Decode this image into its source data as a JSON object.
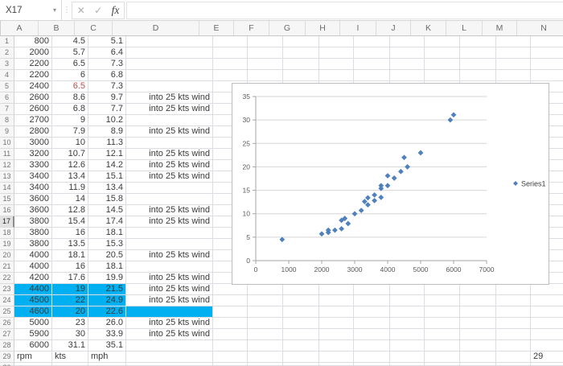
{
  "app": {
    "name_box": "X17",
    "formula_bar_value": "",
    "icons": {
      "dropdown": "▾",
      "grip": "⋮",
      "cancel": "✕",
      "enter": "✓",
      "function": "fx"
    }
  },
  "grid": {
    "column_headers": [
      "A",
      "B",
      "C",
      "D",
      "E",
      "F",
      "G",
      "H",
      "I",
      "J",
      "K",
      "L",
      "M",
      "N"
    ],
    "active_row": 17,
    "partial_bottom_row": "30",
    "colors": {
      "highlight": "#00B0F0",
      "red_text": "#C0504D"
    },
    "rows": [
      {
        "n": "1",
        "a": "800",
        "b": "4.5",
        "c": "5.1",
        "d": ""
      },
      {
        "n": "2",
        "a": "2000",
        "b": "5.7",
        "c": "6.4",
        "d": ""
      },
      {
        "n": "3",
        "a": "2200",
        "b": "6.5",
        "c": "7.3",
        "d": ""
      },
      {
        "n": "4",
        "a": "2200",
        "b": "6",
        "c": "6.8",
        "d": ""
      },
      {
        "n": "5",
        "a": "2400",
        "b": "6.5",
        "c": "7.3",
        "d": "",
        "b_red": true
      },
      {
        "n": "6",
        "a": "2600",
        "b": "8.6",
        "c": "9.7",
        "d": "into 25 kts wind"
      },
      {
        "n": "7",
        "a": "2600",
        "b": "6.8",
        "c": "7.7",
        "d": "into 25 kts wind"
      },
      {
        "n": "8",
        "a": "2700",
        "b": "9",
        "c": "10.2",
        "d": ""
      },
      {
        "n": "9",
        "a": "2800",
        "b": "7.9",
        "c": "8.9",
        "d": "into 25 kts wind"
      },
      {
        "n": "10",
        "a": "3000",
        "b": "10",
        "c": "11.3",
        "d": ""
      },
      {
        "n": "11",
        "a": "3200",
        "b": "10.7",
        "c": "12.1",
        "d": "into 25 kts wind"
      },
      {
        "n": "12",
        "a": "3300",
        "b": "12.6",
        "c": "14.2",
        "d": "into 25 kts wind"
      },
      {
        "n": "13",
        "a": "3400",
        "b": "13.4",
        "c": "15.1",
        "d": "into 25 kts wind"
      },
      {
        "n": "14",
        "a": "3400",
        "b": "11.9",
        "c": "13.4",
        "d": ""
      },
      {
        "n": "15",
        "a": "3600",
        "b": "14",
        "c": "15.8",
        "d": ""
      },
      {
        "n": "16",
        "a": "3600",
        "b": "12.8",
        "c": "14.5",
        "d": "into 25 kts wind"
      },
      {
        "n": "17",
        "a": "3800",
        "b": "15.4",
        "c": "17.4",
        "d": "into 25 kts wind"
      },
      {
        "n": "18",
        "a": "3800",
        "b": "16",
        "c": "18.1",
        "d": ""
      },
      {
        "n": "19",
        "a": "3800",
        "b": "13.5",
        "c": "15.3",
        "d": ""
      },
      {
        "n": "20",
        "a": "4000",
        "b": "18.1",
        "c": "20.5",
        "d": "into 25 kts wind"
      },
      {
        "n": "21",
        "a": "4000",
        "b": "16",
        "c": "18.1",
        "d": ""
      },
      {
        "n": "22",
        "a": "4200",
        "b": "17.6",
        "c": "19.9",
        "d": "into 25 kts wind"
      },
      {
        "n": "23",
        "a": "4400",
        "b": "19",
        "c": "21.5",
        "d": "into 25 kts wind",
        "hl": "ABC"
      },
      {
        "n": "24",
        "a": "4500",
        "b": "22",
        "c": "24.9",
        "d": "into 25 kts wind",
        "hl": "ABC"
      },
      {
        "n": "25",
        "a": "4600",
        "b": "20",
        "c": "22.6",
        "d": "",
        "hl": "ABCD"
      },
      {
        "n": "26",
        "a": "5000",
        "b": "23",
        "c": "26.0",
        "d": "into 25 kts wind"
      },
      {
        "n": "27",
        "a": "5900",
        "b": "30",
        "c": "33.9",
        "d": "into 25 kts wind"
      },
      {
        "n": "28",
        "a": "6000",
        "b": "31.1",
        "c": "35.1",
        "d": ""
      },
      {
        "n": "29",
        "a": "rpm",
        "b": "kts",
        "c": "mph",
        "d": "",
        "align": "left"
      }
    ]
  },
  "chart_data": {
    "type": "scatter",
    "title": "",
    "xlabel": "",
    "ylabel": "",
    "xlim": [
      0,
      7000
    ],
    "ylim": [
      0,
      35
    ],
    "x_ticks": [
      0,
      1000,
      2000,
      3000,
      4000,
      5000,
      6000,
      7000
    ],
    "y_ticks": [
      0,
      5,
      10,
      15,
      20,
      25,
      30,
      35
    ],
    "grid": "horizontal",
    "legend_position": "right",
    "series": [
      {
        "name": "Series1",
        "marker": "diamond",
        "color": "#4F81BD",
        "points": [
          [
            800,
            4.5
          ],
          [
            2000,
            5.7
          ],
          [
            2200,
            6.5
          ],
          [
            2200,
            6
          ],
          [
            2400,
            6.5
          ],
          [
            2600,
            8.6
          ],
          [
            2600,
            6.8
          ],
          [
            2700,
            9
          ],
          [
            2800,
            7.9
          ],
          [
            3000,
            10
          ],
          [
            3200,
            10.7
          ],
          [
            3300,
            12.6
          ],
          [
            3400,
            13.4
          ],
          [
            3400,
            11.9
          ],
          [
            3600,
            14
          ],
          [
            3600,
            12.8
          ],
          [
            3800,
            15.4
          ],
          [
            3800,
            16
          ],
          [
            3800,
            13.5
          ],
          [
            4000,
            18.1
          ],
          [
            4000,
            16
          ],
          [
            4200,
            17.6
          ],
          [
            4400,
            19
          ],
          [
            4500,
            22
          ],
          [
            4600,
            20
          ],
          [
            5000,
            23
          ],
          [
            5900,
            30
          ],
          [
            6000,
            31.1
          ]
        ]
      }
    ]
  }
}
